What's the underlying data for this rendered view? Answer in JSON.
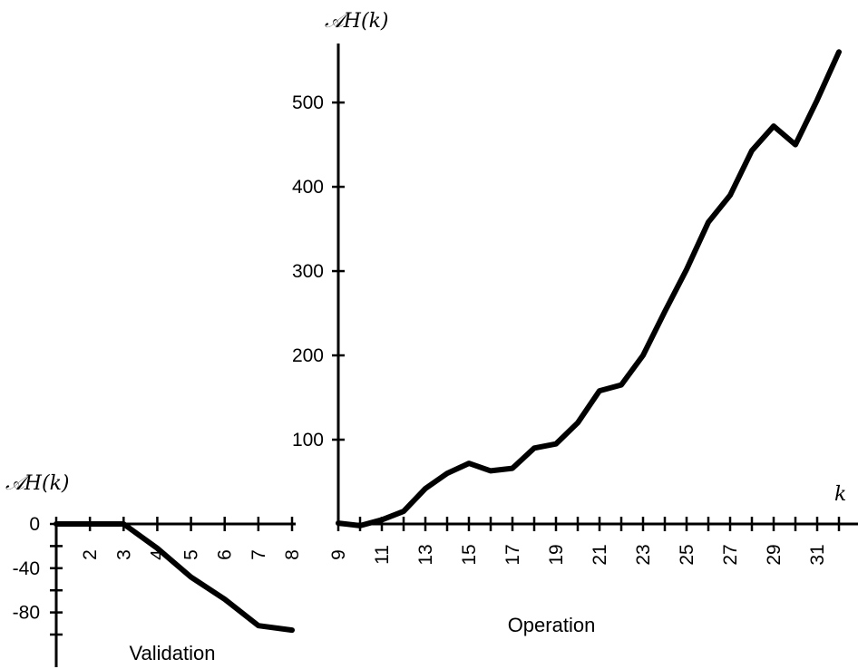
{
  "chart_data": [
    {
      "type": "line",
      "panel": "Validation",
      "label": "Validation",
      "ylabel": "𝒜H(k)",
      "xlabel": "",
      "x": [
        1,
        2,
        3,
        4,
        5,
        6,
        7,
        8
      ],
      "y": [
        0,
        0,
        0,
        -22,
        -48,
        -68,
        -92,
        -96
      ],
      "xlim": [
        1,
        8
      ],
      "ylim": [
        -100,
        0
      ],
      "x_ticks": [
        2,
        3,
        4,
        5,
        6,
        7,
        8
      ],
      "x_tick_labels": [
        "2",
        "3",
        "4",
        "5",
        "6",
        "7",
        "8"
      ],
      "y_ticks": [
        0,
        -40,
        -80
      ],
      "y_tick_labels": [
        "0",
        "-40",
        "-80"
      ],
      "grid": false
    },
    {
      "type": "line",
      "panel": "Operation",
      "label": "Operation",
      "ylabel": "𝒜H(k)",
      "xlabel": "k",
      "x": [
        9,
        10,
        11,
        12,
        13,
        14,
        15,
        16,
        17,
        18,
        19,
        20,
        21,
        22,
        23,
        24,
        25,
        26,
        27,
        28,
        29,
        30,
        31,
        32
      ],
      "y": [
        1,
        -2,
        5,
        15,
        42,
        60,
        72,
        63,
        66,
        90,
        95,
        120,
        158,
        165,
        200,
        252,
        302,
        358,
        390,
        443,
        472,
        450,
        503,
        560
      ],
      "xlim": [
        9,
        32
      ],
      "ylim": [
        0,
        570
      ],
      "x_ticks": [
        9,
        11,
        13,
        15,
        17,
        19,
        21,
        23,
        25,
        27,
        29,
        31
      ],
      "x_tick_labels": [
        "9",
        "11",
        "13",
        "15",
        "17",
        "19",
        "21",
        "23",
        "25",
        "27",
        "29",
        "31"
      ],
      "y_ticks": [
        100,
        200,
        300,
        400,
        500
      ],
      "y_tick_labels": [
        "100",
        "200",
        "300",
        "400",
        "500"
      ],
      "grid": false
    }
  ]
}
